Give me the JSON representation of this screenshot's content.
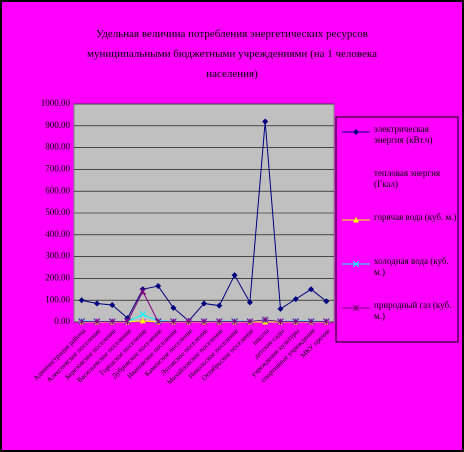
{
  "chart_data": {
    "type": "line",
    "title": "Удельная величина потребления энергетических ресурсов муниципальными бюджетными учреждениями (на 1 человека населения)",
    "categories": [
      "Администрация района",
      "Алексеевское поселение",
      "Березовское поселение",
      "Васильевское поселение",
      "Городское поселение",
      "Дубровское поселение",
      "Ивановское поселение",
      "Каменское поселение",
      "Луговское поселение",
      "Михайловское поселение",
      "Никольское поселение",
      "Октябрьское поселение",
      "школы",
      "детские сады",
      "учреждения культуры",
      "спортивные учреждения",
      "МКУ прочие"
    ],
    "series": [
      {
        "name": "электрическая энергия (кВт.ч)",
        "color": "#000080",
        "marker": "diamond",
        "values": [
          100,
          85,
          78,
          18,
          150,
          165,
          65,
          5,
          85,
          75,
          215,
          90,
          920,
          60,
          105,
          150,
          95
        ]
      },
      {
        "name": "тепловая энергия (Гкал)",
        "color": "#ff00ff",
        "marker": "square",
        "values": [
          1,
          1,
          1,
          1,
          1,
          1,
          1,
          1,
          1,
          1,
          1,
          1,
          2,
          1,
          1,
          1,
          1
        ]
      },
      {
        "name": "горячая вода (куб. м.)",
        "color": "#ffff00",
        "marker": "triangle",
        "values": [
          0,
          0,
          0,
          0,
          5,
          0,
          0,
          0,
          0,
          0,
          0,
          0,
          0,
          0,
          0,
          0,
          0
        ]
      },
      {
        "name": "холодная вода (куб. м.)",
        "color": "#00ffff",
        "marker": "x",
        "values": [
          5,
          3,
          3,
          2,
          35,
          5,
          3,
          2,
          3,
          3,
          4,
          3,
          8,
          3,
          4,
          4,
          3
        ]
      },
      {
        "name": "природный газ (куб. м.)",
        "color": "#800080",
        "marker": "star",
        "values": [
          2,
          2,
          2,
          2,
          140,
          2,
          2,
          2,
          2,
          2,
          2,
          2,
          10,
          2,
          2,
          2,
          2
        ]
      }
    ],
    "ylim": [
      0,
      1000
    ],
    "yticks": [
      {
        "value": 0,
        "label": "0.00"
      },
      {
        "value": 100,
        "label": "100.00"
      },
      {
        "value": 200,
        "label": "200.00"
      },
      {
        "value": 300,
        "label": "300.00"
      },
      {
        "value": 400,
        "label": "400.00"
      },
      {
        "value": 500,
        "label": "500.00"
      },
      {
        "value": 600,
        "label": "600.00"
      },
      {
        "value": 700,
        "label": "700.00"
      },
      {
        "value": 800,
        "label": "800.00"
      },
      {
        "value": 900,
        "label": "900.00"
      },
      {
        "value": 1000,
        "label": "1000.00"
      }
    ],
    "grid": true
  }
}
